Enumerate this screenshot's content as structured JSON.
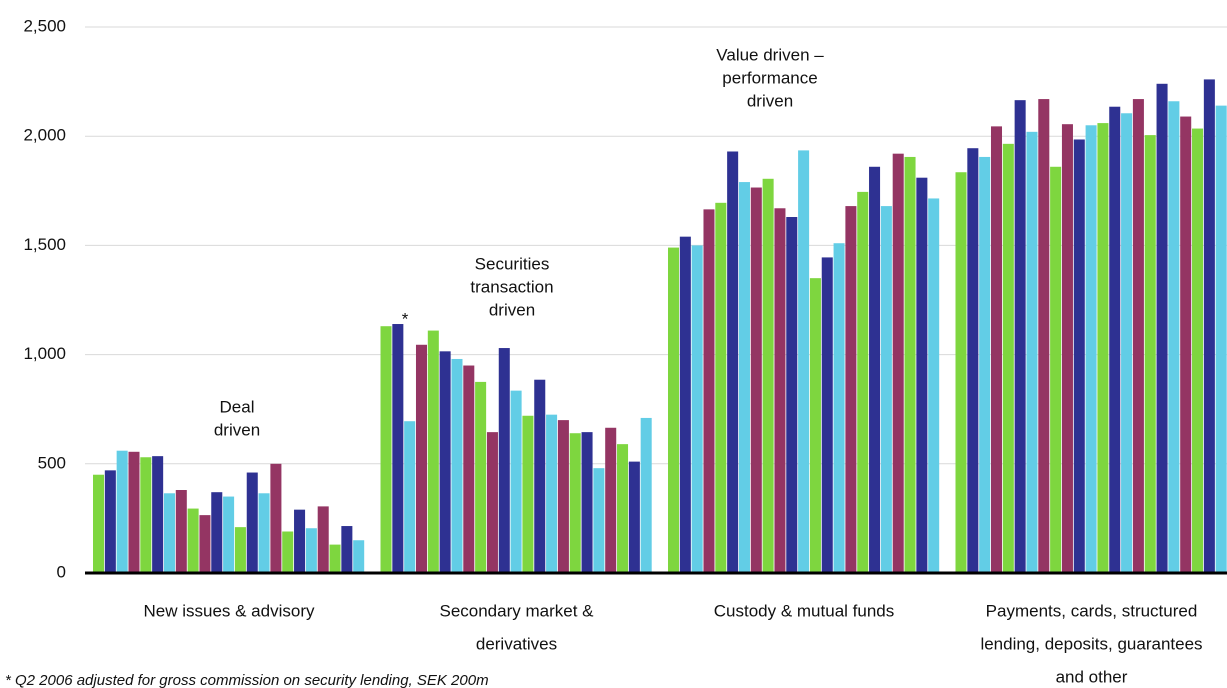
{
  "chart_data": {
    "type": "bar",
    "categories": [
      [
        "New issues & advisory"
      ],
      [
        "Secondary market &",
        "derivatives"
      ],
      [
        "Custody & mutual funds"
      ],
      [
        "Payments, cards, structured",
        "lending, deposits, guarantees",
        "and other"
      ]
    ],
    "series": [
      {
        "color": "#7ed63f",
        "values": [
          450,
          1130,
          1490,
          1835
        ]
      },
      {
        "color": "#2e3192",
        "values": [
          470,
          1140,
          1540,
          1945
        ]
      },
      {
        "color": "#62cde6",
        "values": [
          560,
          695,
          1500,
          1905
        ]
      },
      {
        "color": "#943563",
        "values": [
          555,
          1045,
          1665,
          2045
        ]
      },
      {
        "color": "#7ed63f",
        "values": [
          530,
          1110,
          1695,
          1965
        ]
      },
      {
        "color": "#2e3192",
        "values": [
          535,
          1015,
          1930,
          2165
        ]
      },
      {
        "color": "#62cde6",
        "values": [
          365,
          980,
          1790,
          2020
        ]
      },
      {
        "color": "#943563",
        "values": [
          380,
          950,
          1765,
          2170
        ]
      },
      {
        "color": "#7ed63f",
        "values": [
          295,
          875,
          1805,
          1860
        ]
      },
      {
        "color": "#943563",
        "values": [
          265,
          645,
          1670,
          2055
        ]
      },
      {
        "color": "#2e3192",
        "values": [
          370,
          1030,
          1630,
          1985
        ]
      },
      {
        "color": "#62cde6",
        "values": [
          350,
          835,
          1935,
          2050
        ]
      },
      {
        "color": "#7ed63f",
        "values": [
          210,
          720,
          1350,
          2060
        ]
      },
      {
        "color": "#2e3192",
        "values": [
          460,
          885,
          1445,
          2135
        ]
      },
      {
        "color": "#62cde6",
        "values": [
          365,
          725,
          1510,
          2105
        ]
      },
      {
        "color": "#943563",
        "values": [
          500,
          700,
          1680,
          2170
        ]
      },
      {
        "color": "#7ed63f",
        "values": [
          190,
          640,
          1745,
          2005
        ]
      },
      {
        "color": "#2e3192",
        "values": [
          290,
          645,
          1860,
          2240
        ]
      },
      {
        "color": "#62cde6",
        "values": [
          205,
          480,
          1680,
          2160
        ]
      },
      {
        "color": "#943563",
        "values": [
          305,
          665,
          1920,
          2090
        ]
      },
      {
        "color": "#7ed63f",
        "values": [
          130,
          590,
          1905,
          2035
        ]
      },
      {
        "color": "#2e3192",
        "values": [
          215,
          510,
          1810,
          2260
        ]
      },
      {
        "color": "#62cde6",
        "values": [
          150,
          710,
          1715,
          2140
        ]
      }
    ],
    "ylim": [
      0,
      2500
    ],
    "yticks": [
      0,
      500,
      {
        "value": 1000,
        "label": "1,000"
      },
      {
        "value": 1500,
        "label": "1,500"
      },
      {
        "value": 2000,
        "label": "2,000"
      },
      {
        "value": 2500,
        "label": "2,500"
      }
    ],
    "grid": true,
    "annotations": [
      {
        "lines": [
          "Deal",
          "driven"
        ]
      },
      {
        "lines": [
          "Securities",
          "transaction",
          "driven"
        ]
      },
      {
        "lines": [
          "Value driven –",
          "performance",
          "driven"
        ]
      }
    ],
    "marker": "*",
    "footnote": "*  Q2 2006 adjusted for gross commission on security lending, SEK 200m"
  }
}
